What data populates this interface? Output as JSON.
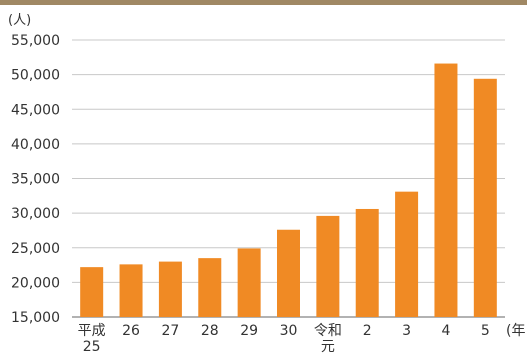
{
  "chart_data": {
    "type": "bar",
    "title": "",
    "xlabel": "",
    "ylabel": "",
    "y_unit": "(人)",
    "x_unit": "(年",
    "categories": [
      [
        "平成",
        "25"
      ],
      [
        "26"
      ],
      [
        "27"
      ],
      [
        "28"
      ],
      [
        "29"
      ],
      [
        "30"
      ],
      [
        "令和",
        "元"
      ],
      [
        "2"
      ],
      [
        "3"
      ],
      [
        "4"
      ],
      [
        "5"
      ]
    ],
    "values": [
      22200,
      22600,
      23000,
      23500,
      24900,
      27600,
      29600,
      30600,
      33100,
      51600,
      49400
    ],
    "ylim": [
      15000,
      55000
    ],
    "yticks": [
      15000,
      20000,
      25000,
      30000,
      35000,
      40000,
      45000,
      50000,
      55000
    ],
    "ytick_labels": [
      "15,000",
      "20,000",
      "25,000",
      "30,000",
      "35,000",
      "40,000",
      "45,000",
      "50,000",
      "55,000"
    ],
    "grid": true,
    "colors": {
      "bar": "#F08A24",
      "grid": "#C8C8C8",
      "axis": "#666666",
      "header_bar": "#A08864"
    }
  }
}
